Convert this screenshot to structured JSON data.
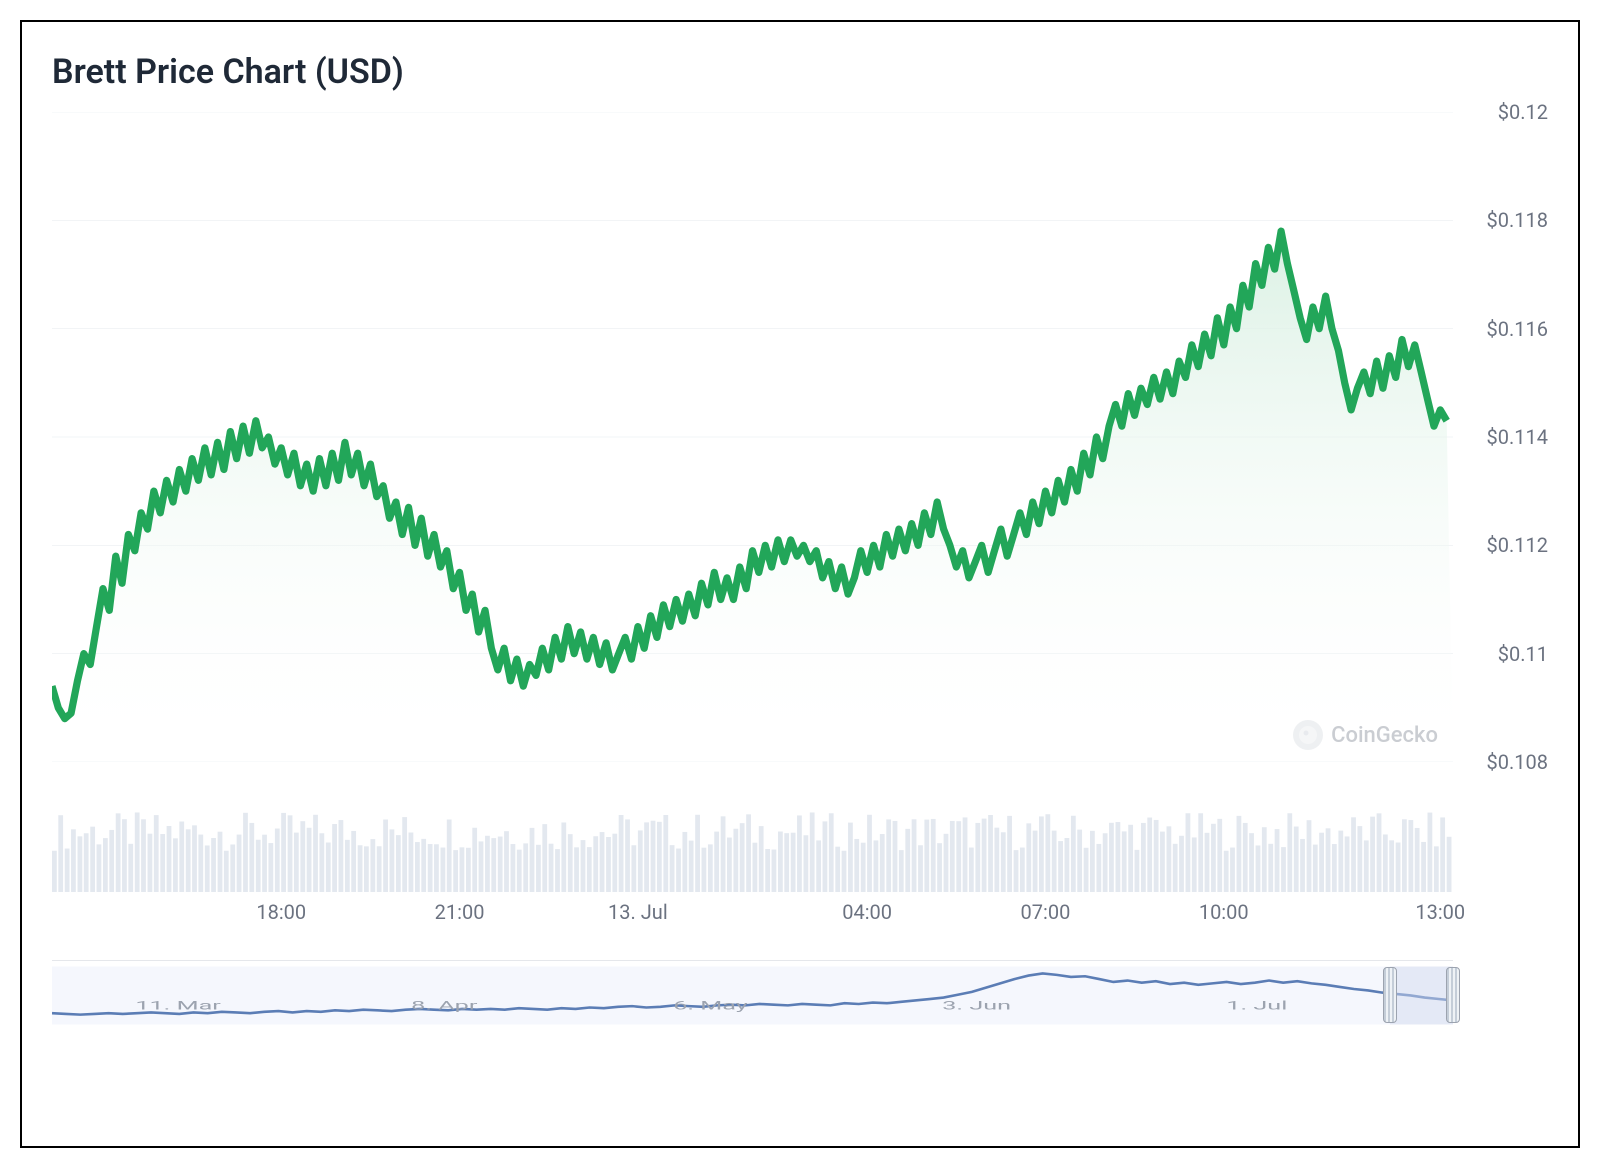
{
  "title": "Brett Price Chart (USD)",
  "watermark": {
    "text": "CoinGecko"
  },
  "chart": {
    "type": "area",
    "line_color": "#22a659",
    "line_width": 2.4,
    "area_top_color": "#d7efe1",
    "area_bottom_color": "#ffffff",
    "grid_color": "#eef1f4",
    "background_color": "#ffffff",
    "y_text_color": "#6b7280",
    "x_text_color": "#6b7280",
    "y_axis": {
      "min": 0.108,
      "max": 0.12,
      "ticks": [
        {
          "v": 0.12,
          "label": "$0.12"
        },
        {
          "v": 0.118,
          "label": "$0.118"
        },
        {
          "v": 0.116,
          "label": "$0.116"
        },
        {
          "v": 0.114,
          "label": "$0.114"
        },
        {
          "v": 0.112,
          "label": "$0.112"
        },
        {
          "v": 0.11,
          "label": "$0.11"
        },
        {
          "v": 0.108,
          "label": "$0.108"
        }
      ]
    },
    "x_axis": {
      "min": 0,
      "max": 220,
      "ticks": [
        {
          "x": 36,
          "label": "18:00"
        },
        {
          "x": 64,
          "label": "21:00"
        },
        {
          "x": 92,
          "label": "13. Jul"
        },
        {
          "x": 128,
          "label": "04:00"
        },
        {
          "x": 156,
          "label": "07:00"
        },
        {
          "x": 184,
          "label": "10:00"
        },
        {
          "x": 218,
          "label": "13:00"
        }
      ]
    },
    "series": [
      0.1094,
      0.109,
      0.1088,
      0.1089,
      0.1095,
      0.11,
      0.1098,
      0.1105,
      0.1112,
      0.1108,
      0.1118,
      0.1113,
      0.1122,
      0.1119,
      0.1126,
      0.1123,
      0.113,
      0.1126,
      0.1132,
      0.1128,
      0.1134,
      0.113,
      0.1136,
      0.1132,
      0.1138,
      0.1133,
      0.1139,
      0.1134,
      0.1141,
      0.1136,
      0.1142,
      0.1137,
      0.1143,
      0.1138,
      0.114,
      0.1135,
      0.1138,
      0.1133,
      0.1137,
      0.1131,
      0.1135,
      0.113,
      0.1136,
      0.1131,
      0.1137,
      0.1132,
      0.1139,
      0.1133,
      0.1137,
      0.1131,
      0.1135,
      0.1129,
      0.1131,
      0.1125,
      0.1128,
      0.1122,
      0.1127,
      0.112,
      0.1125,
      0.1118,
      0.1122,
      0.1116,
      0.1119,
      0.1112,
      0.1115,
      0.1108,
      0.1111,
      0.1104,
      0.1108,
      0.1101,
      0.1097,
      0.1101,
      0.1095,
      0.1099,
      0.1094,
      0.1098,
      0.1096,
      0.1101,
      0.1097,
      0.1103,
      0.1099,
      0.1105,
      0.11,
      0.1104,
      0.1099,
      0.1103,
      0.1098,
      0.1102,
      0.1097,
      0.11,
      0.1103,
      0.1099,
      0.1105,
      0.1101,
      0.1107,
      0.1103,
      0.1109,
      0.1105,
      0.111,
      0.1106,
      0.1111,
      0.1107,
      0.1113,
      0.1109,
      0.1115,
      0.111,
      0.1114,
      0.111,
      0.1116,
      0.1112,
      0.1119,
      0.1115,
      0.112,
      0.1116,
      0.1121,
      0.1117,
      0.1121,
      0.1118,
      0.112,
      0.1117,
      0.1119,
      0.1114,
      0.1117,
      0.1112,
      0.1116,
      0.1111,
      0.1114,
      0.1119,
      0.1115,
      0.112,
      0.1116,
      0.1122,
      0.1118,
      0.1123,
      0.1119,
      0.1124,
      0.112,
      0.1126,
      0.1122,
      0.1128,
      0.1123,
      0.112,
      0.1116,
      0.1119,
      0.1114,
      0.1117,
      0.112,
      0.1115,
      0.1119,
      0.1123,
      0.1118,
      0.1122,
      0.1126,
      0.1122,
      0.1128,
      0.1124,
      0.113,
      0.1126,
      0.1132,
      0.1128,
      0.1134,
      0.113,
      0.1137,
      0.1133,
      0.114,
      0.1136,
      0.1142,
      0.1146,
      0.1142,
      0.1148,
      0.1144,
      0.1149,
      0.1146,
      0.1151,
      0.1147,
      0.1152,
      0.1148,
      0.1154,
      0.1151,
      0.1157,
      0.1153,
      0.1159,
      0.1155,
      0.1162,
      0.1157,
      0.1164,
      0.116,
      0.1168,
      0.1164,
      0.1172,
      0.1168,
      0.1175,
      0.1171,
      0.1178,
      0.1172,
      0.1167,
      0.1162,
      0.1158,
      0.1164,
      0.116,
      0.1166,
      0.116,
      0.1156,
      0.115,
      0.1145,
      0.1149,
      0.1152,
      0.1148,
      0.1154,
      0.1149,
      0.1155,
      0.1151,
      0.1158,
      0.1153,
      0.1157,
      0.1152,
      0.1147,
      0.1142,
      0.1145,
      0.1143
    ]
  },
  "volume": {
    "bar_color": "#e3e8ef",
    "count": 220,
    "base": 0.55,
    "jitter": 0.35
  },
  "navigator": {
    "line_color": "#5b7db5",
    "mask_color": "#ecf0fb",
    "handle_border": "#9ca3af",
    "ticks": [
      {
        "x": 0.09,
        "label": "11. Mar"
      },
      {
        "x": 0.28,
        "label": "8. Apr"
      },
      {
        "x": 0.47,
        "label": "6. May"
      },
      {
        "x": 0.66,
        "label": "3. Jun"
      },
      {
        "x": 0.86,
        "label": "1. Jul"
      }
    ],
    "series": [
      0.12,
      0.11,
      0.1,
      0.11,
      0.12,
      0.11,
      0.12,
      0.13,
      0.12,
      0.11,
      0.13,
      0.12,
      0.14,
      0.13,
      0.12,
      0.14,
      0.15,
      0.13,
      0.15,
      0.14,
      0.16,
      0.15,
      0.17,
      0.16,
      0.15,
      0.17,
      0.18,
      0.17,
      0.16,
      0.18,
      0.17,
      0.18,
      0.17,
      0.19,
      0.18,
      0.17,
      0.19,
      0.18,
      0.2,
      0.19,
      0.21,
      0.22,
      0.2,
      0.21,
      0.23,
      0.22,
      0.21,
      0.23,
      0.24,
      0.23,
      0.25,
      0.24,
      0.23,
      0.25,
      0.24,
      0.23,
      0.26,
      0.25,
      0.27,
      0.26,
      0.28,
      0.3,
      0.32,
      0.34,
      0.38,
      0.42,
      0.48,
      0.54,
      0.6,
      0.65,
      0.68,
      0.66,
      0.63,
      0.64,
      0.6,
      0.56,
      0.58,
      0.55,
      0.57,
      0.53,
      0.55,
      0.52,
      0.54,
      0.56,
      0.53,
      0.55,
      0.58,
      0.55,
      0.57,
      0.54,
      0.52,
      0.49,
      0.46,
      0.44,
      0.41,
      0.39,
      0.37,
      0.34,
      0.32,
      0.3
    ],
    "selection": {
      "start": 0.955,
      "end": 1.0
    }
  }
}
